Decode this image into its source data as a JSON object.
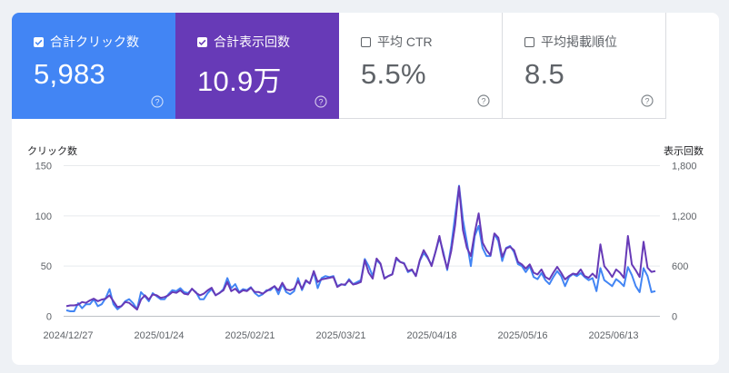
{
  "metrics": [
    {
      "label": "合計クリック数",
      "value": "5,983",
      "checked": true
    },
    {
      "label": "合計表示回数",
      "value": "10.9万",
      "checked": true
    },
    {
      "label": "平均 CTR",
      "value": "5.5%",
      "checked": false
    },
    {
      "label": "平均掲載順位",
      "value": "8.5",
      "checked": false
    }
  ],
  "colors": {
    "clicks": "#4285f4",
    "impressions": "#673ab7"
  },
  "chart_data": {
    "type": "line",
    "left_axis": {
      "title": "クリック数",
      "ticks": [
        "150",
        "100",
        "50",
        "0"
      ],
      "range": [
        0,
        150
      ]
    },
    "right_axis": {
      "title": "表示回数",
      "ticks": [
        "1,800",
        "1,200",
        "600",
        "0"
      ],
      "range": [
        0,
        1800
      ]
    },
    "x_ticks": [
      "2024/12/27",
      "2025/01/24",
      "2025/02/21",
      "2025/03/21",
      "2025/04/18",
      "2025/05/16",
      "2025/06/13"
    ],
    "series": [
      {
        "name": "合計クリック数",
        "axis": "left",
        "color": "#4285f4",
        "values": [
          6,
          5,
          5,
          13,
          8,
          12,
          12,
          17,
          10,
          12,
          18,
          27,
          12,
          7,
          10,
          15,
          17,
          13,
          7,
          24,
          20,
          15,
          23,
          20,
          17,
          17,
          22,
          26,
          25,
          28,
          24,
          23,
          27,
          24,
          17,
          17,
          23,
          27,
          21,
          23,
          27,
          38,
          28,
          32,
          24,
          27,
          26,
          29,
          23,
          20,
          22,
          26,
          26,
          30,
          22,
          32,
          24,
          22,
          25,
          38,
          26,
          35,
          33,
          44,
          28,
          38,
          40,
          39,
          40,
          30,
          32,
          31,
          37,
          32,
          34,
          36,
          57,
          50,
          40,
          56,
          52,
          38,
          40,
          42,
          57,
          54,
          53,
          44,
          46,
          40,
          55,
          63,
          58,
          51,
          64,
          78,
          64,
          46,
          70,
          100,
          130,
          96,
          74,
          50,
          80,
          90,
          68,
          60,
          60,
          82,
          75,
          55,
          68,
          70,
          64,
          52,
          50,
          44,
          50,
          39,
          37,
          43,
          36,
          32,
          39,
          45,
          40,
          30,
          39,
          42,
          40,
          43,
          39,
          36,
          38,
          25,
          48,
          36,
          33,
          30,
          37,
          34,
          30,
          49,
          41,
          30,
          24,
          48,
          40,
          24,
          25
        ]
      },
      {
        "name": "合計表示回数",
        "axis": "right",
        "color": "#673ab7",
        "values": [
          120,
          130,
          130,
          140,
          170,
          160,
          190,
          210,
          180,
          200,
          210,
          250,
          180,
          110,
          120,
          170,
          160,
          120,
          80,
          200,
          250,
          200,
          260,
          250,
          220,
          230,
          250,
          290,
          280,
          310,
          270,
          260,
          330,
          280,
          250,
          270,
          310,
          340,
          250,
          280,
          310,
          410,
          300,
          330,
          280,
          310,
          300,
          340,
          290,
          290,
          270,
          300,
          330,
          360,
          310,
          400,
          320,
          310,
          330,
          420,
          330,
          430,
          390,
          540,
          410,
          440,
          450,
          460,
          470,
          350,
          380,
          380,
          430,
          380,
          390,
          410,
          670,
          520,
          450,
          690,
          630,
          450,
          480,
          500,
          700,
          650,
          630,
          540,
          560,
          480,
          670,
          790,
          710,
          600,
          770,
          960,
          740,
          570,
          780,
          1090,
          1550,
          1030,
          820,
          720,
          1000,
          1230,
          880,
          790,
          730,
          990,
          940,
          710,
          810,
          830,
          790,
          650,
          620,
          570,
          620,
          520,
          500,
          560,
          470,
          440,
          520,
          590,
          520,
          440,
          480,
          510,
          500,
          560,
          480,
          460,
          510,
          460,
          860,
          600,
          540,
          470,
          560,
          520,
          460,
          960,
          620,
          550,
          470,
          890,
          580,
          530,
          540
        ]
      }
    ]
  }
}
